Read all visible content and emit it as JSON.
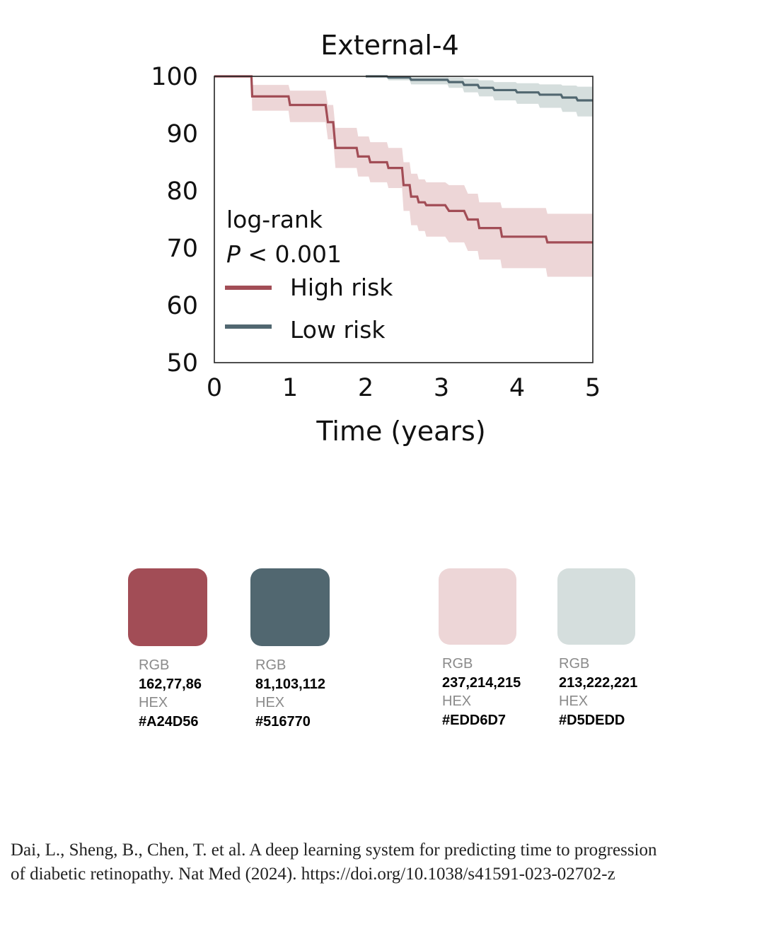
{
  "chart_data": {
    "type": "line",
    "title": "External-4",
    "xlabel": "Time (years)",
    "ylabel": "",
    "xlim": [
      0,
      5
    ],
    "ylim": [
      50,
      100
    ],
    "x_ticks": [
      "0",
      "1",
      "2",
      "3",
      "4",
      "5"
    ],
    "y_ticks": [
      "100",
      "90",
      "80",
      "70",
      "60",
      "50"
    ],
    "grid": false,
    "legend_position": "lower-left",
    "annotation": {
      "line1": "log-rank",
      "p_italic": "P",
      "p_rest": " < 0.001"
    },
    "series": [
      {
        "name": "High risk",
        "color": "#A24D56",
        "band_color": "#EDD6D7",
        "x": [
          0,
          0.49,
          0.5,
          0.98,
          1.0,
          1.47,
          1.5,
          1.57,
          1.6,
          1.88,
          1.9,
          2.04,
          2.06,
          2.28,
          2.3,
          2.48,
          2.5,
          2.58,
          2.6,
          2.68,
          2.7,
          2.78,
          2.8,
          3.05,
          3.1,
          3.3,
          3.35,
          3.48,
          3.5,
          3.78,
          3.8,
          4.38,
          4.4,
          5.0
        ],
        "y": [
          100,
          100,
          96.5,
          96.5,
          95,
          95,
          92,
          92,
          87.5,
          87.5,
          86,
          86,
          85,
          85,
          84,
          84,
          81,
          81,
          79,
          79,
          78,
          78,
          77.5,
          77.5,
          76.5,
          76.5,
          75,
          75,
          73.5,
          73.5,
          72,
          72,
          71,
          71
        ],
        "lower": [
          100,
          100,
          94,
          94,
          92,
          92,
          89,
          89,
          84,
          84,
          82.5,
          82.5,
          81.5,
          81.5,
          80.5,
          80.5,
          76.5,
          76.5,
          74,
          74,
          73,
          73,
          72,
          72,
          71,
          71,
          69.5,
          69.5,
          68,
          68,
          66.5,
          66.5,
          65,
          65
        ],
        "upper": [
          100,
          100,
          98.5,
          98.5,
          97.5,
          97.5,
          95,
          95,
          91,
          91,
          89.5,
          89.5,
          88.5,
          88.5,
          87.5,
          87.5,
          85,
          85,
          83,
          83,
          82,
          82,
          81.5,
          81.5,
          81,
          81,
          79.5,
          79.5,
          78,
          78,
          77,
          77,
          76,
          76
        ]
      },
      {
        "name": "Low risk",
        "color": "#516770",
        "band_color": "#D5DEDD",
        "x": [
          2.0,
          2.28,
          2.3,
          2.58,
          2.6,
          3.08,
          3.1,
          3.28,
          3.3,
          3.48,
          3.5,
          3.68,
          3.7,
          3.98,
          4.0,
          4.28,
          4.3,
          4.58,
          4.6,
          4.78,
          4.8,
          5.0
        ],
        "y": [
          100,
          100,
          99.8,
          99.8,
          99.4,
          99.4,
          99,
          99,
          98.5,
          98.5,
          98,
          98,
          97.6,
          97.6,
          97.2,
          97.2,
          96.8,
          96.8,
          96.3,
          96.3,
          95.8,
          95.8
        ],
        "lower": [
          100,
          100,
          99.3,
          99.3,
          98.6,
          98.6,
          98,
          98,
          97.2,
          97.2,
          96.5,
          96.5,
          95.8,
          95.8,
          95.2,
          95.2,
          94.5,
          94.5,
          93.8,
          93.8,
          93,
          93
        ],
        "upper": [
          100,
          100,
          100,
          100,
          100,
          100,
          99.8,
          99.8,
          99.6,
          99.6,
          99.3,
          99.3,
          99,
          99,
          98.8,
          98.8,
          98.6,
          98.6,
          98.4,
          98.4,
          98.2,
          98.2
        ]
      }
    ]
  },
  "palette": {
    "rgb_label": "RGB",
    "hex_label": "HEX",
    "colors": [
      {
        "hex_color": "#A24D56",
        "rgb": "162,77,86",
        "hex": "#A24D56"
      },
      {
        "hex_color": "#516770",
        "rgb": "81,103,112",
        "hex": "#516770"
      },
      {
        "hex_color": "#EDD6D7",
        "rgb": "237,214,215",
        "hex": "#EDD6D7"
      },
      {
        "hex_color": "#D5DEDD",
        "rgb": "213,222,221",
        "hex": "#D5DEDD"
      }
    ]
  },
  "citation": {
    "line1": "Dai, L., Sheng, B., Chen, T. et al. A deep learning system for predicting time to progression",
    "line2": "of diabetic retinopathy. Nat Med (2024). https://doi.org/10.1038/s41591-023-02702-z"
  }
}
